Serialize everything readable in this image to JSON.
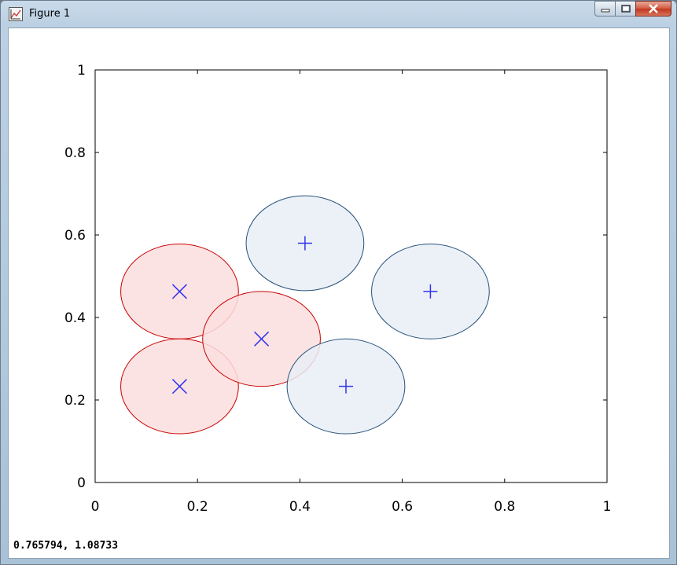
{
  "window": {
    "title": "Figure 1"
  },
  "statusbar": {
    "coords": "0.765794,  1.08733"
  },
  "colors": {
    "class_x_fill": "#fcdede",
    "class_x_edge": "#c80000",
    "class_plus_fill": "#e8eef6",
    "class_plus_edge": "#27507a",
    "marker": "#3333ee"
  },
  "chart_data": {
    "type": "scatter",
    "title": "",
    "xlabel": "",
    "ylabel": "",
    "xlim": [
      0,
      1
    ],
    "ylim": [
      0,
      1
    ],
    "xticks": [
      "0",
      "0.2",
      "0.4",
      "0.6",
      "0.8",
      "1"
    ],
    "yticks": [
      "0",
      "0.2",
      "0.4",
      "0.6",
      "0.8",
      "1"
    ],
    "xtick_values": [
      0,
      0.2,
      0.4,
      0.6,
      0.8,
      1
    ],
    "ytick_values": [
      0,
      0.2,
      0.4,
      0.6,
      0.8,
      1
    ],
    "circle_radius": 0.115,
    "grid": false,
    "series": [
      {
        "marker": "x",
        "points": [
          {
            "x": 0.165,
            "y": 0.463
          },
          {
            "x": 0.165,
            "y": 0.233
          },
          {
            "x": 0.325,
            "y": 0.348
          }
        ]
      },
      {
        "marker": "+",
        "points": [
          {
            "x": 0.41,
            "y": 0.58
          },
          {
            "x": 0.655,
            "y": 0.463
          },
          {
            "x": 0.49,
            "y": 0.233
          }
        ]
      }
    ]
  }
}
